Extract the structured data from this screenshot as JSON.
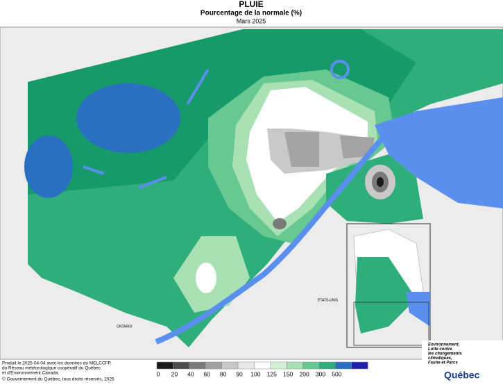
{
  "header": {
    "title": "PLUIE",
    "subtitle": "Pourcentage de la normale (%)",
    "date": "Mars 2025"
  },
  "map_labels": {
    "ontario": "ONTARIO",
    "usa": "ÉTATS-UNIS"
  },
  "legend": {
    "values": [
      0,
      20,
      40,
      60,
      80,
      90,
      100,
      125,
      150,
      200,
      300,
      500
    ],
    "colors": [
      "#1a1a1a",
      "#4d4d4d",
      "#7a7a7a",
      "#a3a3a3",
      "#c9c9c9",
      "#e8e8e8",
      "#ffffff",
      "#d6f0d6",
      "#a9e0b4",
      "#67c892",
      "#2fae7c",
      "#2a6fc0"
    ]
  },
  "footer": [
    "Produit le 2025-04-04 avec les données du MELCCFP,",
    "du Réseau météorologique coopératif du Québec",
    "et d'Environnement Canada.",
    "© Gouvernement du Québec, tous droits réservés, 2025"
  ],
  "logo": {
    "lines": [
      "Environnement,",
      "Lutte contre",
      "les changements",
      "climatiques,",
      "Faune et Parcs"
    ],
    "name": "Québec"
  }
}
